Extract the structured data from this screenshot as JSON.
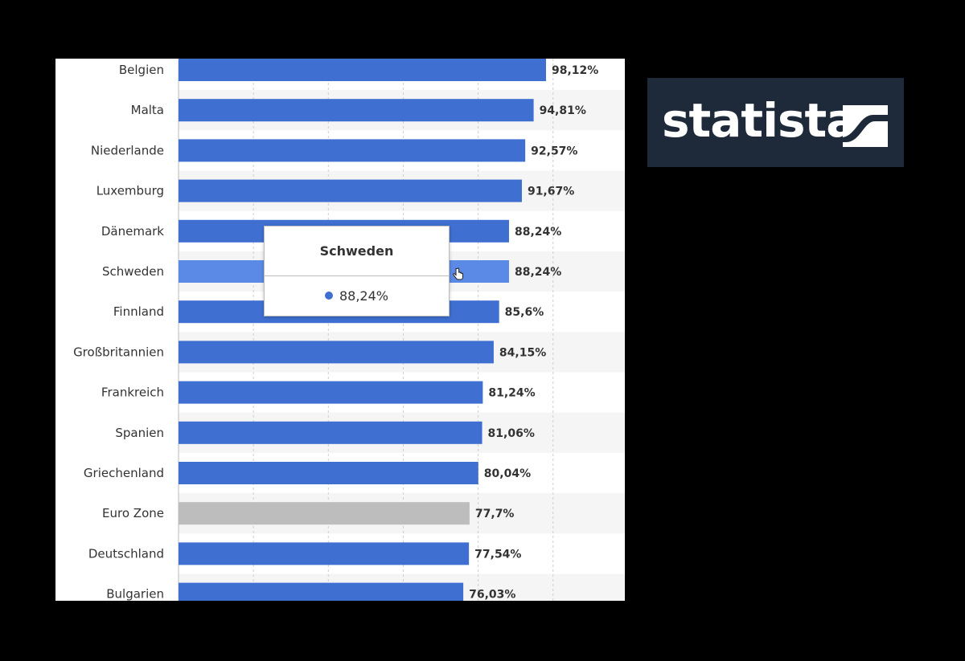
{
  "chart_data": {
    "type": "bar",
    "orientation": "horizontal",
    "categories": [
      "Belgien",
      "Malta",
      "Niederlande",
      "Luxemburg",
      "Dänemark",
      "Schweden",
      "Finnland",
      "Großbritannien",
      "Frankreich",
      "Spanien",
      "Griechenland",
      "Euro Zone",
      "Deutschland",
      "Bulgarien"
    ],
    "values": [
      98.12,
      94.81,
      92.57,
      91.67,
      88.24,
      88.24,
      85.6,
      84.15,
      81.24,
      81.06,
      80.04,
      77.7,
      77.54,
      76.03
    ],
    "value_labels": [
      "98,12%",
      "94,81%",
      "92,57%",
      "91,67%",
      "88,24%",
      "88,24%",
      "85,6%",
      "84,15%",
      "81,24%",
      "81,06%",
      "80,04%",
      "77,7%",
      "77,54%",
      "76,03%"
    ],
    "highlighted_category": "Schweden",
    "reference_category": "Euro Zone",
    "xlim": [
      0,
      100
    ],
    "grid": true,
    "colors": {
      "bar": "#3f6fd1",
      "bar_highlight": "#5b8ae6",
      "bar_reference": "#bdbdbd",
      "grid": "#cfcfcf",
      "band": "#f5f5f5"
    }
  },
  "tooltip": {
    "title": "Schweden",
    "value": "88,24%",
    "dot_color": "#3f6fd1"
  },
  "logo": {
    "text": "statista",
    "background": "#1e2a3a"
  }
}
